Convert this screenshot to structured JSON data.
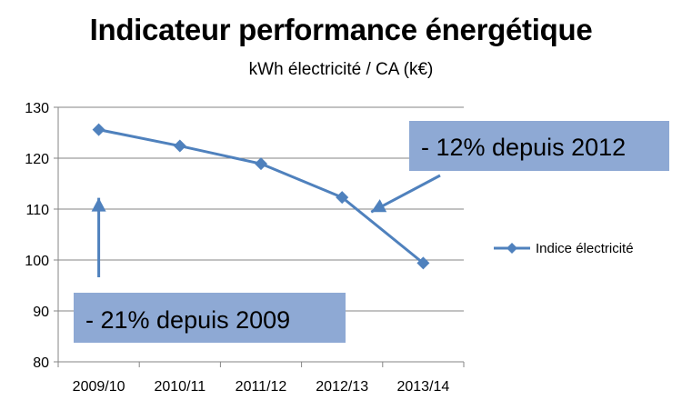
{
  "chart_data": {
    "type": "line",
    "title": "Indicateur performance énergétique",
    "subtitle": "kWh électricité / CA (k€)",
    "categories": [
      "2009/10",
      "2010/11",
      "2011/12",
      "2012/13",
      "2013/14"
    ],
    "series": [
      {
        "name": "Indice électricité",
        "values": [
          125.6,
          122.4,
          118.9,
          112.3,
          99.4
        ],
        "color": "#4F81BD",
        "marker": "diamond"
      }
    ],
    "yticks": [
      80,
      90,
      100,
      110,
      120,
      130
    ],
    "ylim": [
      80,
      130
    ],
    "grid": true,
    "legend_position": "right",
    "annotations": [
      {
        "text": "- 12% depuis 2012",
        "arrow_target_category": "2012/13",
        "arrow_target_value": 110.5
      },
      {
        "text": "- 21% depuis 2009",
        "arrow_target_category": "2009/10",
        "arrow_target_value": 114
      }
    ],
    "colors": {
      "series": "#4F81BD",
      "callout_fill": "#8EA9D4",
      "grid": "#868686",
      "axis": "#868686"
    }
  }
}
